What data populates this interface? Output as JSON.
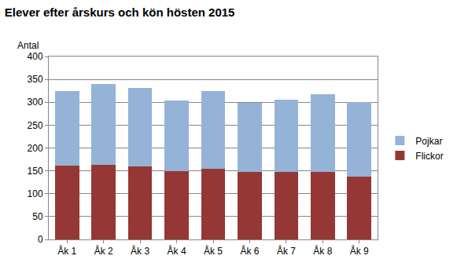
{
  "chart_data": {
    "type": "bar",
    "title": "Elever efter årskurs och kön hösten 2015",
    "ylabel": "Antal",
    "categories": [
      "Åk 1",
      "Åk 2",
      "Åk 3",
      "Åk 4",
      "Åk 5",
      "Åk 6",
      "Åk 7",
      "Åk 8",
      "Åk 9"
    ],
    "series": [
      {
        "name": "Flickor",
        "color": "#953735",
        "values": [
          161,
          163,
          160,
          150,
          155,
          147,
          148,
          148,
          137
        ]
      },
      {
        "name": "Pojkar",
        "color": "#95b3d7",
        "values": [
          164,
          177,
          172,
          154,
          169,
          151,
          158,
          170,
          163
        ]
      }
    ],
    "stacked": true,
    "ylim": [
      0,
      400
    ],
    "yticks": [
      0,
      50,
      100,
      150,
      200,
      250,
      300,
      350,
      400
    ],
    "grid": true,
    "legend": "right"
  }
}
